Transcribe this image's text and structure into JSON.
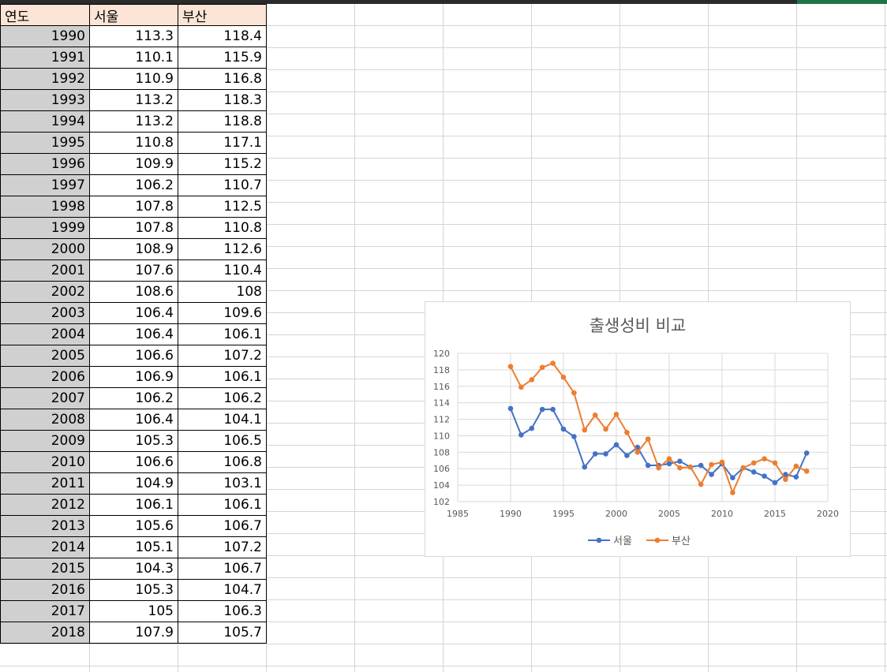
{
  "sheet": {
    "headers": [
      "연도",
      "서울",
      "부산"
    ],
    "rows": [
      [
        "1990",
        "113.3",
        "118.4"
      ],
      [
        "1991",
        "110.1",
        "115.9"
      ],
      [
        "1992",
        "110.9",
        "116.8"
      ],
      [
        "1993",
        "113.2",
        "118.3"
      ],
      [
        "1994",
        "113.2",
        "118.8"
      ],
      [
        "1995",
        "110.8",
        "117.1"
      ],
      [
        "1996",
        "109.9",
        "115.2"
      ],
      [
        "1997",
        "106.2",
        "110.7"
      ],
      [
        "1998",
        "107.8",
        "112.5"
      ],
      [
        "1999",
        "107.8",
        "110.8"
      ],
      [
        "2000",
        "108.9",
        "112.6"
      ],
      [
        "2001",
        "107.6",
        "110.4"
      ],
      [
        "2002",
        "108.6",
        "108"
      ],
      [
        "2003",
        "106.4",
        "109.6"
      ],
      [
        "2004",
        "106.4",
        "106.1"
      ],
      [
        "2005",
        "106.6",
        "107.2"
      ],
      [
        "2006",
        "106.9",
        "106.1"
      ],
      [
        "2007",
        "106.2",
        "106.2"
      ],
      [
        "2008",
        "106.4",
        "104.1"
      ],
      [
        "2009",
        "105.3",
        "106.5"
      ],
      [
        "2010",
        "106.6",
        "106.8"
      ],
      [
        "2011",
        "104.9",
        "103.1"
      ],
      [
        "2012",
        "106.1",
        "106.1"
      ],
      [
        "2013",
        "105.6",
        "106.7"
      ],
      [
        "2014",
        "105.1",
        "107.2"
      ],
      [
        "2015",
        "104.3",
        "106.7"
      ],
      [
        "2016",
        "105.3",
        "104.7"
      ],
      [
        "2017",
        "105",
        "106.3"
      ],
      [
        "2018",
        "107.9",
        "105.7"
      ]
    ]
  },
  "chart_data": {
    "type": "scatter",
    "title": "출생성비 비교",
    "xlabel": "",
    "ylabel": "",
    "xlim": [
      1985,
      2020
    ],
    "ylim": [
      102,
      120
    ],
    "xticks": [
      1985,
      1990,
      1995,
      2000,
      2005,
      2010,
      2015,
      2020
    ],
    "yticks": [
      102,
      104,
      106,
      108,
      110,
      112,
      114,
      116,
      118,
      120
    ],
    "grid": true,
    "legend": "bottom",
    "x": [
      1990,
      1991,
      1992,
      1993,
      1994,
      1995,
      1996,
      1997,
      1998,
      1999,
      2000,
      2001,
      2002,
      2003,
      2004,
      2005,
      2006,
      2007,
      2008,
      2009,
      2010,
      2011,
      2012,
      2013,
      2014,
      2015,
      2016,
      2017,
      2018
    ],
    "series": [
      {
        "name": "서울",
        "color": "#4472c4",
        "values": [
          113.3,
          110.1,
          110.9,
          113.2,
          113.2,
          110.8,
          109.9,
          106.2,
          107.8,
          107.8,
          108.9,
          107.6,
          108.6,
          106.4,
          106.4,
          106.6,
          106.9,
          106.2,
          106.4,
          105.3,
          106.6,
          104.9,
          106.1,
          105.6,
          105.1,
          104.3,
          105.3,
          105,
          107.9
        ]
      },
      {
        "name": "부산",
        "color": "#ed7d31",
        "values": [
          118.4,
          115.9,
          116.8,
          118.3,
          118.8,
          117.1,
          115.2,
          110.7,
          112.5,
          110.8,
          112.6,
          110.4,
          108,
          109.6,
          106.1,
          107.2,
          106.1,
          106.2,
          104.1,
          106.5,
          106.8,
          103.1,
          106.1,
          106.7,
          107.2,
          106.7,
          104.7,
          106.3,
          105.7
        ]
      }
    ]
  }
}
